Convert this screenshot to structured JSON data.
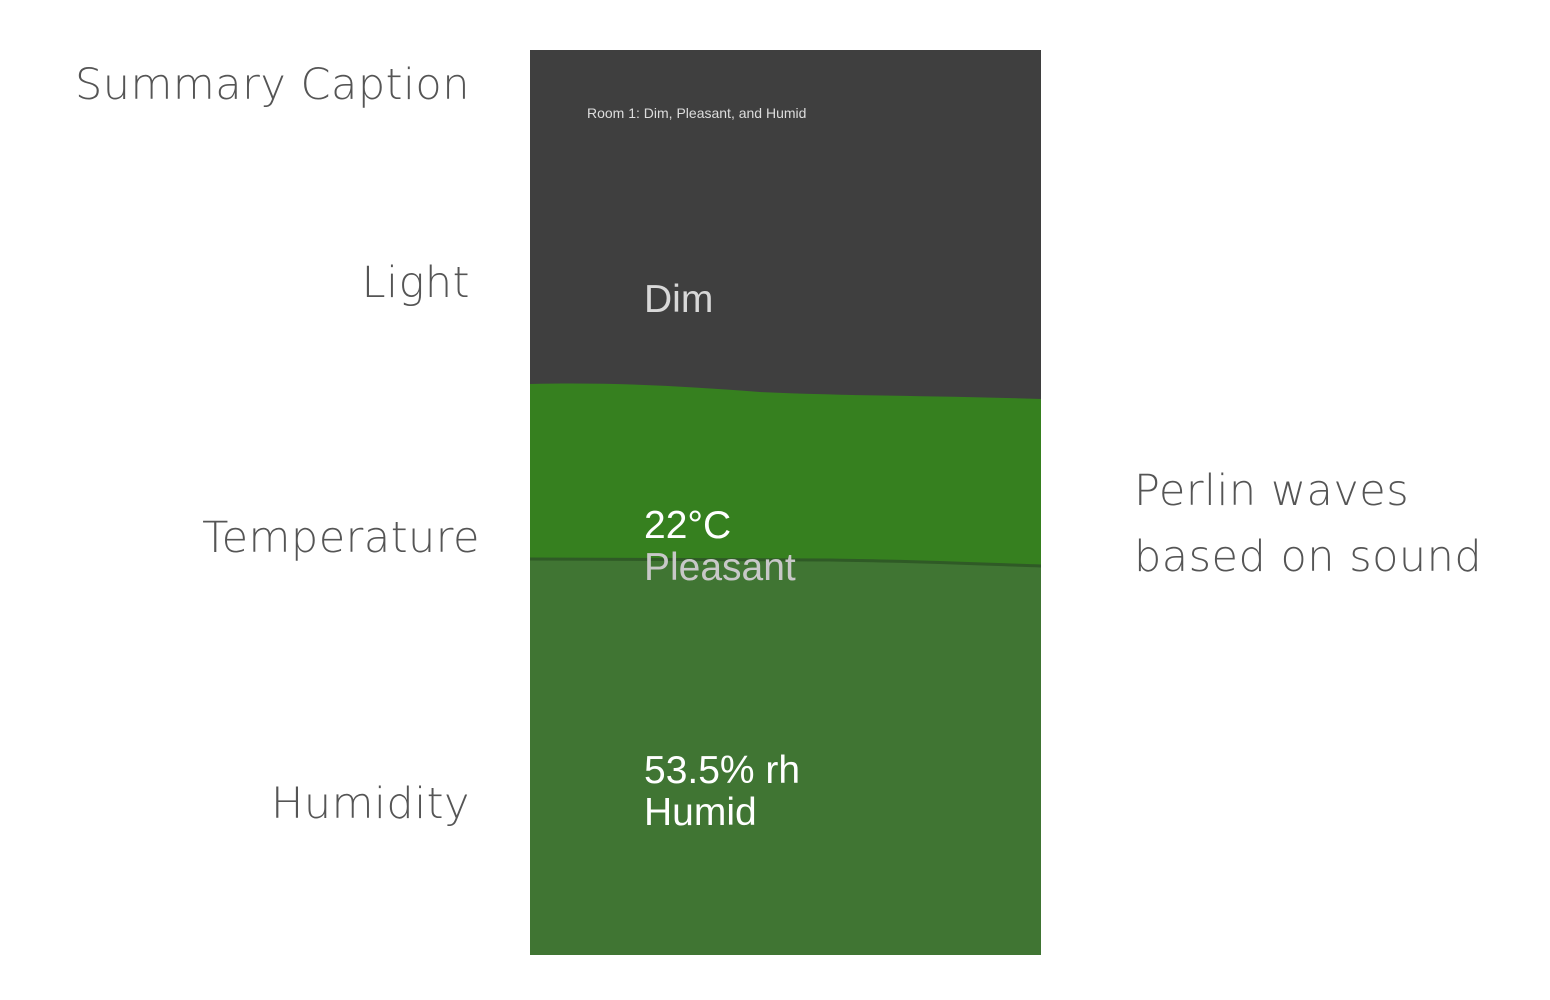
{
  "annotations": {
    "summary_caption": "Summary Caption",
    "light": "Light",
    "temperature": "Temperature",
    "humidity": "Humidity",
    "perlin_line1": "Perlin waves",
    "perlin_line2": "based on sound"
  },
  "panel": {
    "caption": "Room 1: Dim, Pleasant, and Humid",
    "light": {
      "label": "Dim",
      "color": "#3f3f3f"
    },
    "temperature": {
      "value": "22°C",
      "label": "Pleasant",
      "color": "#36801f"
    },
    "humidity": {
      "value": "53.5% rh",
      "label": "Humid",
      "color": "#407533"
    }
  }
}
